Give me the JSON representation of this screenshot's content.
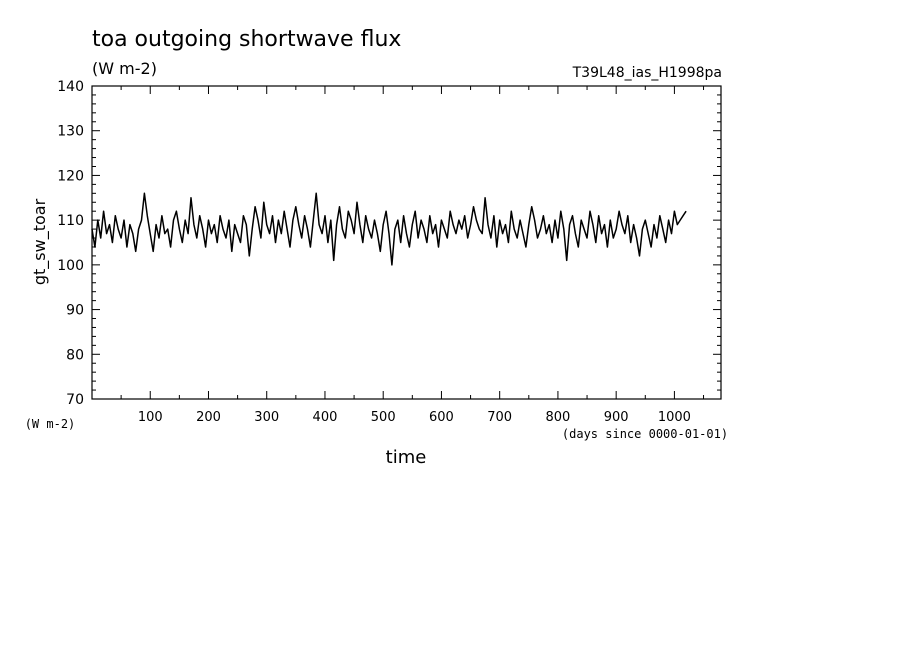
{
  "chart_data": {
    "type": "line",
    "title": "toa outgoing shortwave flux",
    "units": "(W m-2)",
    "run_label": "T39L48_ias_H1998pa",
    "xlabel": "time",
    "xlabel_units": "(days since 0000-01-01)",
    "ylabel": "gt_sw_toar",
    "ylabel_units": "(W m-2)",
    "xlim": [
      0,
      1080
    ],
    "ylim": [
      70,
      140
    ],
    "x_ticks": [
      100,
      200,
      300,
      400,
      500,
      600,
      700,
      800,
      900,
      1000
    ],
    "y_ticks": [
      70,
      80,
      90,
      100,
      110,
      120,
      130,
      140
    ],
    "grid": false,
    "series": [
      {
        "x_start": 0,
        "x_step": 5,
        "values": [
          108,
          104,
          110,
          106,
          112,
          107,
          109,
          105,
          111,
          108,
          106,
          110,
          104,
          109,
          107,
          103,
          108,
          110,
          116,
          111,
          107,
          103,
          109,
          106,
          111,
          107,
          108,
          104,
          110,
          112,
          108,
          105,
          110,
          107,
          115,
          109,
          106,
          111,
          108,
          104,
          110,
          107,
          109,
          105,
          111,
          108,
          106,
          110,
          103,
          109,
          107,
          105,
          111,
          109,
          102,
          108,
          113,
          110,
          106,
          114,
          109,
          107,
          111,
          105,
          110,
          107,
          112,
          108,
          104,
          110,
          113,
          109,
          106,
          111,
          108,
          104,
          110,
          116,
          109,
          107,
          111,
          105,
          110,
          101,
          109,
          113,
          108,
          106,
          112,
          110,
          107,
          114,
          109,
          105,
          111,
          108,
          106,
          110,
          107,
          103,
          109,
          112,
          107,
          100,
          108,
          110,
          105,
          111,
          107,
          104,
          109,
          112,
          106,
          110,
          108,
          105,
          111,
          107,
          109,
          104,
          110,
          108,
          106,
          112,
          109,
          107,
          110,
          108,
          111,
          106,
          109,
          113,
          110,
          108,
          107,
          115,
          109,
          106,
          111,
          104,
          110,
          107,
          109,
          105,
          112,
          108,
          106,
          110,
          107,
          104,
          109,
          113,
          110,
          106,
          108,
          111,
          107,
          109,
          105,
          110,
          106,
          112,
          108,
          101,
          109,
          111,
          107,
          104,
          110,
          108,
          106,
          112,
          109,
          105,
          111,
          107,
          109,
          104,
          110,
          106,
          108,
          112,
          109,
          107,
          111,
          105,
          109,
          106,
          102,
          108,
          110,
          107,
          104,
          109,
          106,
          111,
          108,
          105,
          110,
          107,
          112,
          109,
          110,
          111,
          112
        ]
      }
    ]
  }
}
